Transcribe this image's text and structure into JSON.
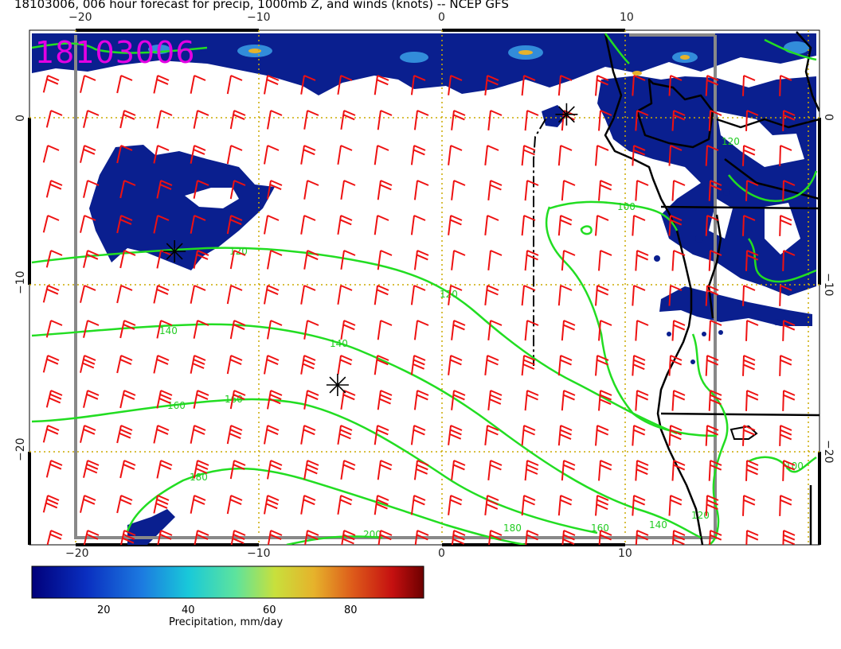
{
  "title": "18103006, 006 hour forecast for precip, 1000mb Z, and winds (knots) -- NCEP GFS",
  "stamp": "18103006",
  "map": {
    "lon_range": [
      -22.5,
      20
    ],
    "lat_range": [
      -25,
      5
    ],
    "lon_ticks": [
      {
        "value": -20,
        "label": "−20"
      },
      {
        "value": -10,
        "label": "−10"
      },
      {
        "value": 0,
        "label": "0"
      },
      {
        "value": 10,
        "label": "10"
      }
    ],
    "lat_ticks": [
      {
        "value": 0,
        "label": "0"
      },
      {
        "value": -10,
        "label": "−10"
      },
      {
        "value": -20,
        "label": "−20"
      }
    ],
    "colors": {
      "contour": "#22dd22",
      "barb": "#ee1111",
      "precip_low": "#0a1f8f",
      "coast": "#000000",
      "grid": "#ccaa00",
      "frame": "#888888"
    },
    "contour_labels": [
      "100",
      "120",
      "120",
      "140",
      "140",
      "160",
      "160",
      "180",
      "180",
      "200",
      "140",
      "160",
      "100",
      "120",
      "120"
    ],
    "stars": [
      {
        "lon": -14.6,
        "lat": -8.0
      },
      {
        "lon": -5.7,
        "lat": -16.0
      },
      {
        "lon": 6.8,
        "lat": 0.2
      }
    ]
  },
  "colorbar": {
    "label": "Precipitation, mm/day",
    "ticks": [
      "20",
      "40",
      "60",
      "80"
    ],
    "range": [
      0,
      100
    ],
    "colors": [
      "#00007a",
      "#0a2fc0",
      "#1c7ae0",
      "#19c9d9",
      "#5de39d",
      "#c8e03c",
      "#e6b22b",
      "#dd5a1a",
      "#c51010",
      "#6d0000"
    ]
  }
}
